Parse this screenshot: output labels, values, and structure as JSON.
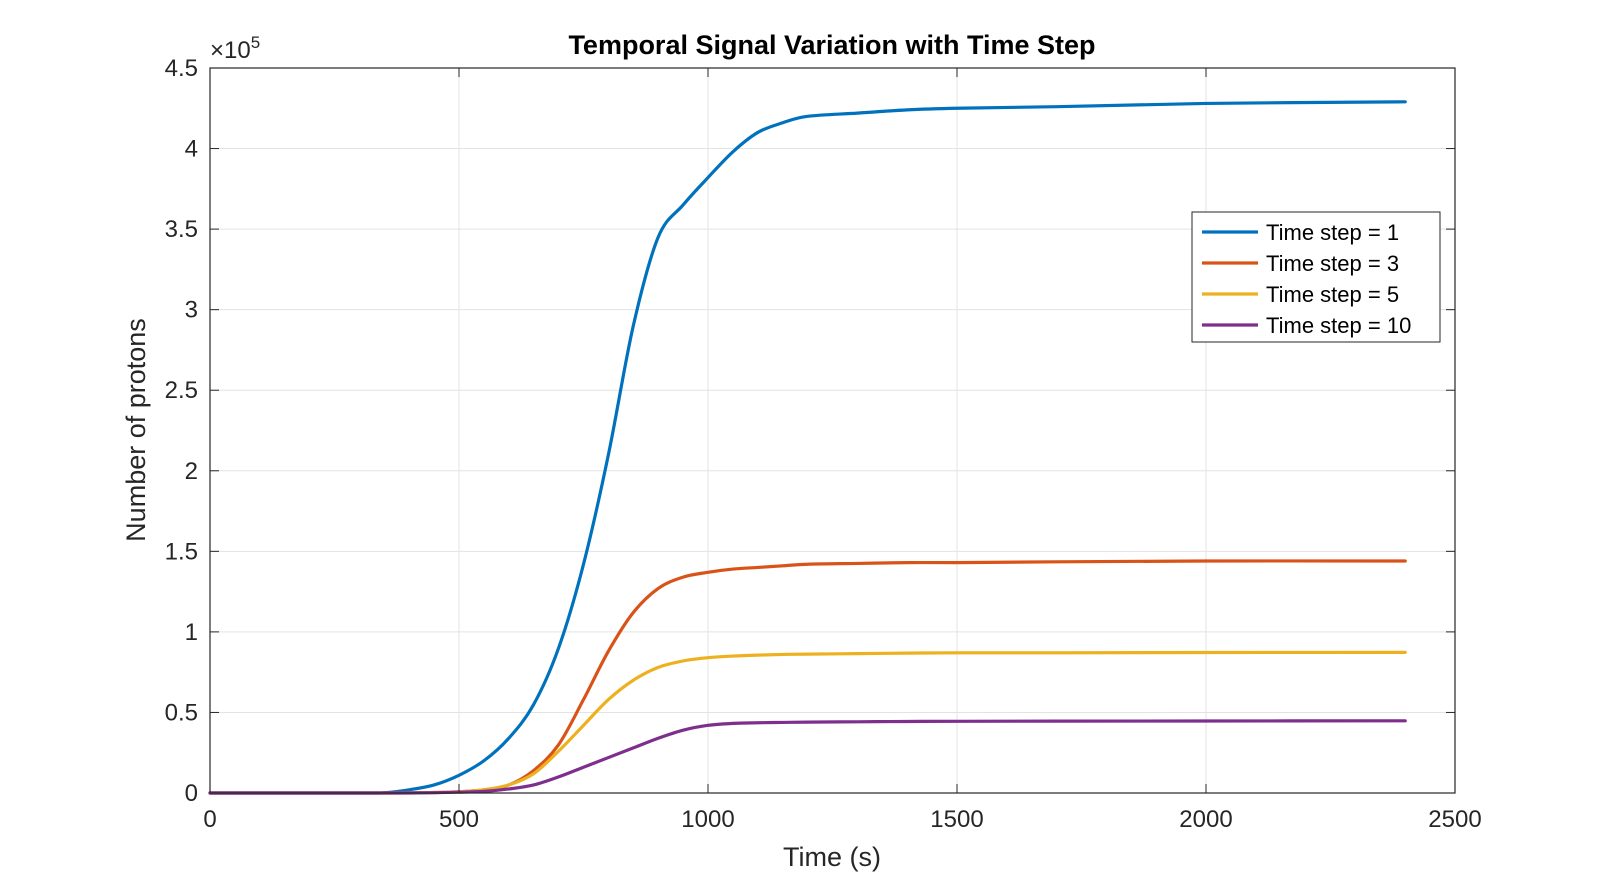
{
  "chart_data": {
    "type": "line",
    "title": "Temporal Signal Variation with Time Step",
    "xlabel": "Time (s)",
    "ylabel": "Number of protons",
    "y_exponent_label": "×10",
    "y_exponent_power": "5",
    "xlim": [
      0,
      2500
    ],
    "ylim": [
      0,
      4.5
    ],
    "x_ticks": [
      0,
      500,
      1000,
      1500,
      2000,
      2500
    ],
    "x_tick_labels": [
      "0",
      "500",
      "1000",
      "1500",
      "2000",
      "2500"
    ],
    "y_ticks": [
      0,
      0.5,
      1,
      1.5,
      2,
      2.5,
      3,
      3.5,
      4,
      4.5
    ],
    "y_tick_labels": [
      "0",
      "0.5",
      "1",
      "1.5",
      "2",
      "2.5",
      "3",
      "3.5",
      "4",
      "4.5"
    ],
    "grid": true,
    "legend_position": "right",
    "x": [
      0,
      300,
      350,
      400,
      450,
      500,
      550,
      600,
      650,
      700,
      750,
      800,
      850,
      900,
      950,
      1000,
      1050,
      1100,
      1150,
      1200,
      1300,
      1400,
      1500,
      1700,
      2000,
      2400
    ],
    "series": [
      {
        "name": "Time step = 1",
        "color": "#0072BD",
        "values": [
          0,
          0,
          0.002,
          0.02,
          0.05,
          0.11,
          0.2,
          0.34,
          0.55,
          0.9,
          1.42,
          2.1,
          2.9,
          3.45,
          3.65,
          3.82,
          3.98,
          4.1,
          4.16,
          4.2,
          4.22,
          4.24,
          4.25,
          4.26,
          4.28,
          4.29
        ]
      },
      {
        "name": "Time step = 3",
        "color": "#D95319",
        "values": [
          0,
          0,
          0,
          0.001,
          0.003,
          0.008,
          0.02,
          0.05,
          0.14,
          0.3,
          0.58,
          0.88,
          1.12,
          1.27,
          1.34,
          1.37,
          1.39,
          1.4,
          1.41,
          1.42,
          1.425,
          1.43,
          1.43,
          1.435,
          1.44,
          1.44
        ]
      },
      {
        "name": "Time step = 5",
        "color": "#EDB120",
        "values": [
          0,
          0,
          0,
          0.001,
          0.003,
          0.008,
          0.02,
          0.05,
          0.12,
          0.26,
          0.42,
          0.58,
          0.7,
          0.78,
          0.82,
          0.84,
          0.85,
          0.856,
          0.86,
          0.862,
          0.865,
          0.868,
          0.87,
          0.87,
          0.872,
          0.873
        ]
      },
      {
        "name": "Time step = 10",
        "color": "#7E2F8E",
        "values": [
          0,
          0,
          0,
          0,
          0.002,
          0.005,
          0.01,
          0.025,
          0.05,
          0.1,
          0.16,
          0.22,
          0.28,
          0.34,
          0.39,
          0.42,
          0.432,
          0.436,
          0.438,
          0.44,
          0.442,
          0.444,
          0.445,
          0.446,
          0.447,
          0.448
        ]
      }
    ]
  }
}
